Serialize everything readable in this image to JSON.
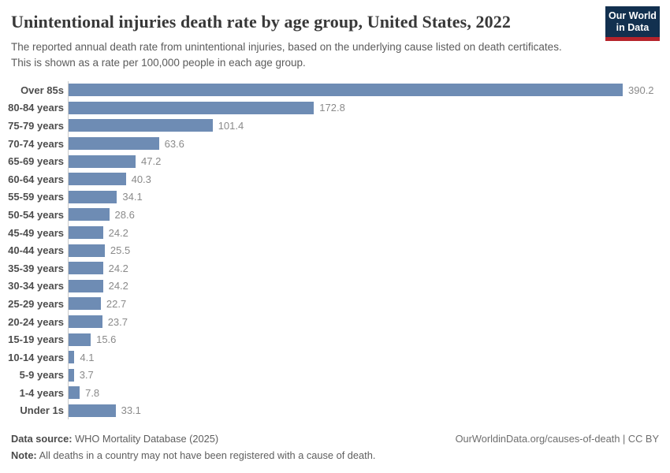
{
  "header": {
    "title": "Unintentional injuries death rate by age group, United States, 2022",
    "subtitle": "The reported annual death rate from unintentional injuries, based on the underlying cause listed on death certificates. This is shown as a rate per 100,000 people in each age group.",
    "logo": {
      "line1": "Our World",
      "line2": "in Data"
    }
  },
  "chart_data": {
    "type": "bar",
    "orientation": "horizontal",
    "title": "Unintentional injuries death rate by age group, United States, 2022",
    "categories": [
      "Over 85s",
      "80-84 years",
      "75-79 years",
      "70-74 years",
      "65-69 years",
      "60-64 years",
      "55-59 years",
      "50-54 years",
      "45-49 years",
      "40-44 years",
      "35-39 years",
      "30-34 years",
      "25-29 years",
      "20-24 years",
      "15-19 years",
      "10-14 years",
      "5-9 years",
      "1-4 years",
      "Under 1s"
    ],
    "values": [
      390.2,
      172.8,
      101.4,
      63.6,
      47.2,
      40.3,
      34.1,
      28.6,
      24.2,
      25.5,
      24.2,
      24.2,
      22.7,
      23.7,
      15.6,
      4.1,
      3.7,
      7.8,
      33.1
    ],
    "xlabel": "",
    "ylabel": "",
    "xlim": [
      0,
      390.2
    ],
    "grid": false,
    "legend": false,
    "bar_color": "#6e8cb4",
    "value_label_color": "#8a8a8a",
    "category_label_color": "#4d4d4d"
  },
  "footer": {
    "source_label": "Data source:",
    "source_text": "WHO Mortality Database (2025)",
    "note_label": "Note:",
    "note_text": "All deaths in a country may not have been registered with a cause of death.",
    "attribution": "OurWorldinData.org/causes-of-death | CC BY"
  },
  "colors": {
    "bar": "#6e8cb4",
    "logo_background": "#12304f",
    "logo_stripe": "#b5232b",
    "axis_line": "#cccccc",
    "title_text": "#383838"
  }
}
